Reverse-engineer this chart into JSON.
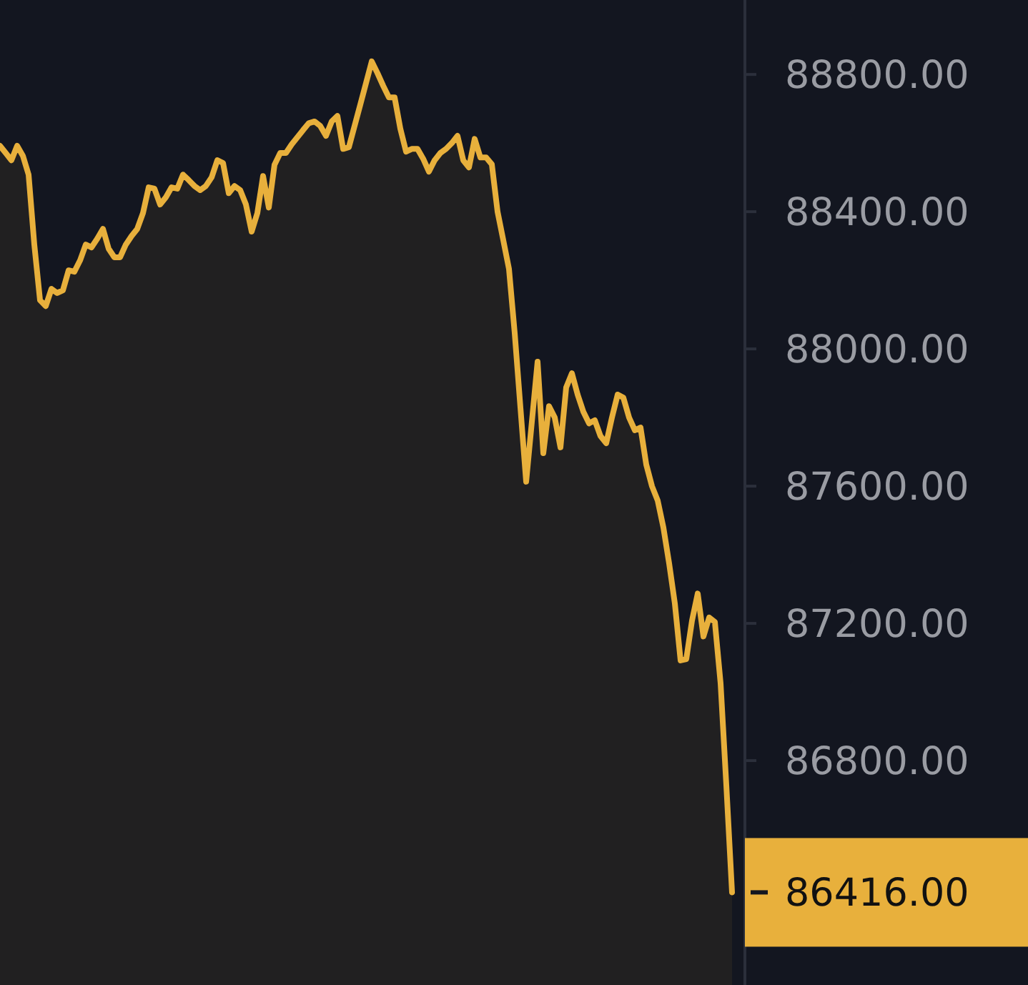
{
  "chart_data": {
    "type": "area",
    "categories": [
      null,
      null,
      null,
      null,
      null,
      null,
      null,
      null,
      null,
      null,
      null,
      null,
      null,
      null,
      null,
      null,
      null,
      null,
      null,
      null,
      null,
      null,
      null,
      null,
      null,
      null,
      null,
      null,
      null,
      null,
      null,
      null,
      null,
      null,
      null,
      null,
      null,
      null,
      null,
      null,
      null,
      null,
      null,
      null,
      null,
      null,
      null,
      null,
      null,
      null,
      null,
      null,
      null,
      null,
      null,
      null,
      null,
      null,
      null,
      null,
      null,
      null,
      null,
      null,
      null,
      null,
      null,
      null,
      null,
      null,
      null,
      null,
      null,
      null,
      null,
      null,
      null,
      null,
      null,
      null,
      null,
      null,
      null,
      null,
      null,
      null,
      null,
      null,
      null,
      null,
      null,
      null,
      null,
      null,
      null,
      null,
      null,
      null,
      null,
      null,
      null,
      null,
      null,
      null,
      null,
      null,
      null,
      null,
      null,
      null,
      null,
      null,
      null,
      null,
      null,
      null,
      null,
      null,
      null,
      null,
      null,
      null,
      null,
      null,
      null,
      null,
      null,
      null,
      null
    ],
    "series": [
      {
        "color": "#e8b03c",
        "values": [
          88592,
          88571,
          88550,
          88592,
          88563,
          88508,
          88304,
          88142,
          88125,
          88175,
          88163,
          88171,
          88229,
          88225,
          88258,
          88304,
          88296,
          88321,
          88350,
          88292,
          88267,
          88267,
          88304,
          88329,
          88350,
          88396,
          88471,
          88467,
          88421,
          88442,
          88471,
          88467,
          88508,
          88492,
          88475,
          88463,
          88475,
          88500,
          88550,
          88542,
          88454,
          88475,
          88463,
          88421,
          88342,
          88396,
          88504,
          88412,
          88537,
          88571,
          88571,
          88596,
          88617,
          88638,
          88658,
          88663,
          88650,
          88621,
          88663,
          88679,
          88583,
          88588,
          88650,
          88712,
          88775,
          88838,
          88804,
          88767,
          88733,
          88733,
          88642,
          88575,
          88583,
          88583,
          88554,
          88517,
          88550,
          88571,
          88583,
          88600,
          88621,
          88550,
          88529,
          88612,
          88558,
          88558,
          88538,
          88400,
          88317,
          88233,
          88046,
          87829,
          87613,
          87788,
          87963,
          87696,
          87833,
          87800,
          87713,
          87888,
          87929,
          87867,
          87817,
          87783,
          87792,
          87746,
          87725,
          87800,
          87867,
          87858,
          87800,
          87763,
          87771,
          87663,
          87600,
          87558,
          87479,
          87375,
          87258,
          87092,
          87096,
          87208,
          87287,
          87162,
          87217,
          87204,
          87025,
          86729,
          86416
        ]
      }
    ],
    "ylim": [
      86146,
      89017
    ],
    "yticks": [
      {
        "value": 86800,
        "label": "86800.00"
      },
      {
        "value": 87200,
        "label": "87200.00"
      },
      {
        "value": 87600,
        "label": "87600.00"
      },
      {
        "value": 88000,
        "label": "88000.00"
      },
      {
        "value": 88400,
        "label": "88400.00"
      },
      {
        "value": 88800,
        "label": "88800.00"
      }
    ],
    "tick_labels": "y",
    "annotations": [
      "86416.00"
    ]
  }
}
